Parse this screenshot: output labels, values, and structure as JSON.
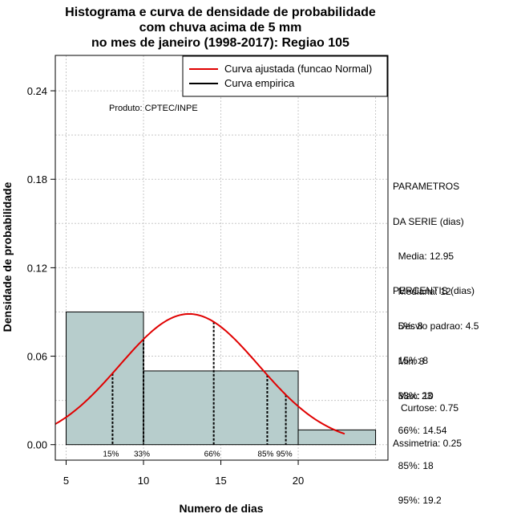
{
  "chart_data": {
    "type": "bar",
    "title_lines": [
      "Histograma e curva de densidade de probabilidade",
      "com chuva acima de 5 mm",
      "no mes de janeiro (1998-2017): Regiao 105"
    ],
    "xlabel": "Numero de dias",
    "ylabel": "Densidade de probabilidade",
    "xlim": [
      4.3,
      25.8
    ],
    "ylim": [
      -0.0105,
      0.264
    ],
    "x_ticks": [
      5,
      10,
      15,
      20
    ],
    "x_tick_labels": [
      "5",
      "10",
      "15",
      "20"
    ],
    "y_ticks": [
      0.0,
      0.06,
      0.12,
      0.18,
      0.24
    ],
    "y_tick_labels": [
      "0.00",
      "0.06",
      "0.12",
      "0.18",
      "0.24"
    ],
    "grid": true,
    "bins": [
      {
        "start": 5,
        "end": 10,
        "density": 0.09
      },
      {
        "start": 10,
        "end": 20,
        "density": 0.05
      },
      {
        "start": 20,
        "end": 25,
        "density": 0.01
      }
    ],
    "bar_color": "#b7cdcc",
    "normal_curve": {
      "mean": 12.95,
      "sd": 4.5,
      "x_range": [
        4.3,
        23
      ],
      "color": "#e00000"
    },
    "percentile_markers": [
      {
        "label": "15%",
        "x": 8
      },
      {
        "label": "33%",
        "x": 10
      },
      {
        "label": "66%",
        "x": 14.54
      },
      {
        "label": "85%",
        "x": 18
      },
      {
        "label": "95%",
        "x": 19.2
      }
    ],
    "legend": {
      "position": "top-right",
      "entries": [
        {
          "label": "Curva ajustada (funcao Normal)",
          "color": "#e00000"
        },
        {
          "label": "Curva empirica",
          "color": "#000000"
        }
      ]
    },
    "annotation": "Produto: CPTEC/INPE"
  },
  "side_panel": {
    "parametros": [
      "PARAMETROS",
      "DA SERIE (dias)",
      "  Media: 12.95",
      "  Mediana: 12",
      "  Desvio padrao: 4.5",
      "  Min: 8",
      "  Max: 23"
    ],
    "percentis": [
      "PERCENTIS (dias)",
      "  5%: 8",
      "  15%: 8",
      "  33%: 10",
      "  66%: 14.54",
      "  85%: 18",
      "  95%: 19.2"
    ],
    "shape": [
      "   Curtose: 0.75",
      "Assimetria: 0.25"
    ]
  }
}
